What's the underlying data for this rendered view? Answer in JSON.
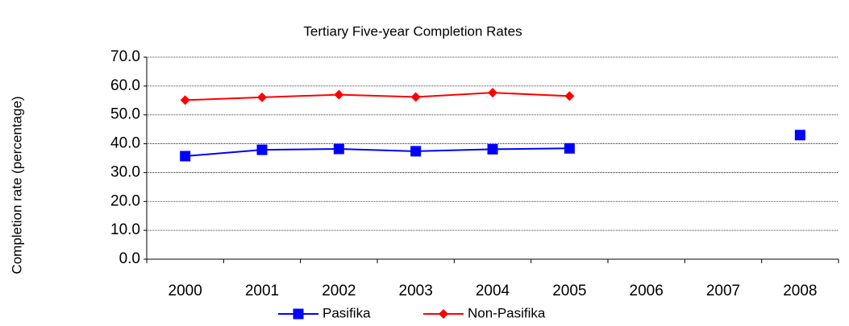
{
  "chart_data": {
    "type": "line",
    "title": "Tertiary Five-year Completion Rates",
    "y_label": "Completion rate (percentage)",
    "categories": [
      "2000",
      "2001",
      "2002",
      "2003",
      "2004",
      "2005",
      "2006",
      "2007",
      "2008"
    ],
    "series": [
      {
        "name": "Pasifika",
        "color": "#0000ff",
        "marker": "square",
        "values": [
          35.7,
          37.9,
          38.2,
          37.4,
          38.1,
          38.4,
          null,
          null,
          43.0
        ]
      },
      {
        "name": "Non-Pasifika",
        "color": "#ff0000",
        "marker": "diamond",
        "values": [
          55.1,
          56.1,
          57.0,
          56.2,
          57.7,
          56.5,
          null,
          null,
          null
        ]
      }
    ],
    "ylim": [
      0,
      70
    ],
    "yticks": [
      {
        "value": 0,
        "label": "0.0"
      },
      {
        "value": 10,
        "label": "10.0"
      },
      {
        "value": 20,
        "label": "20.0"
      },
      {
        "value": 30,
        "label": "30.0"
      },
      {
        "value": 40,
        "label": "40.0"
      },
      {
        "value": 50,
        "label": "50.0"
      },
      {
        "value": 60,
        "label": "60.0"
      },
      {
        "value": 70,
        "label": "70.0"
      }
    ],
    "grid": true,
    "legend": "bottom"
  }
}
